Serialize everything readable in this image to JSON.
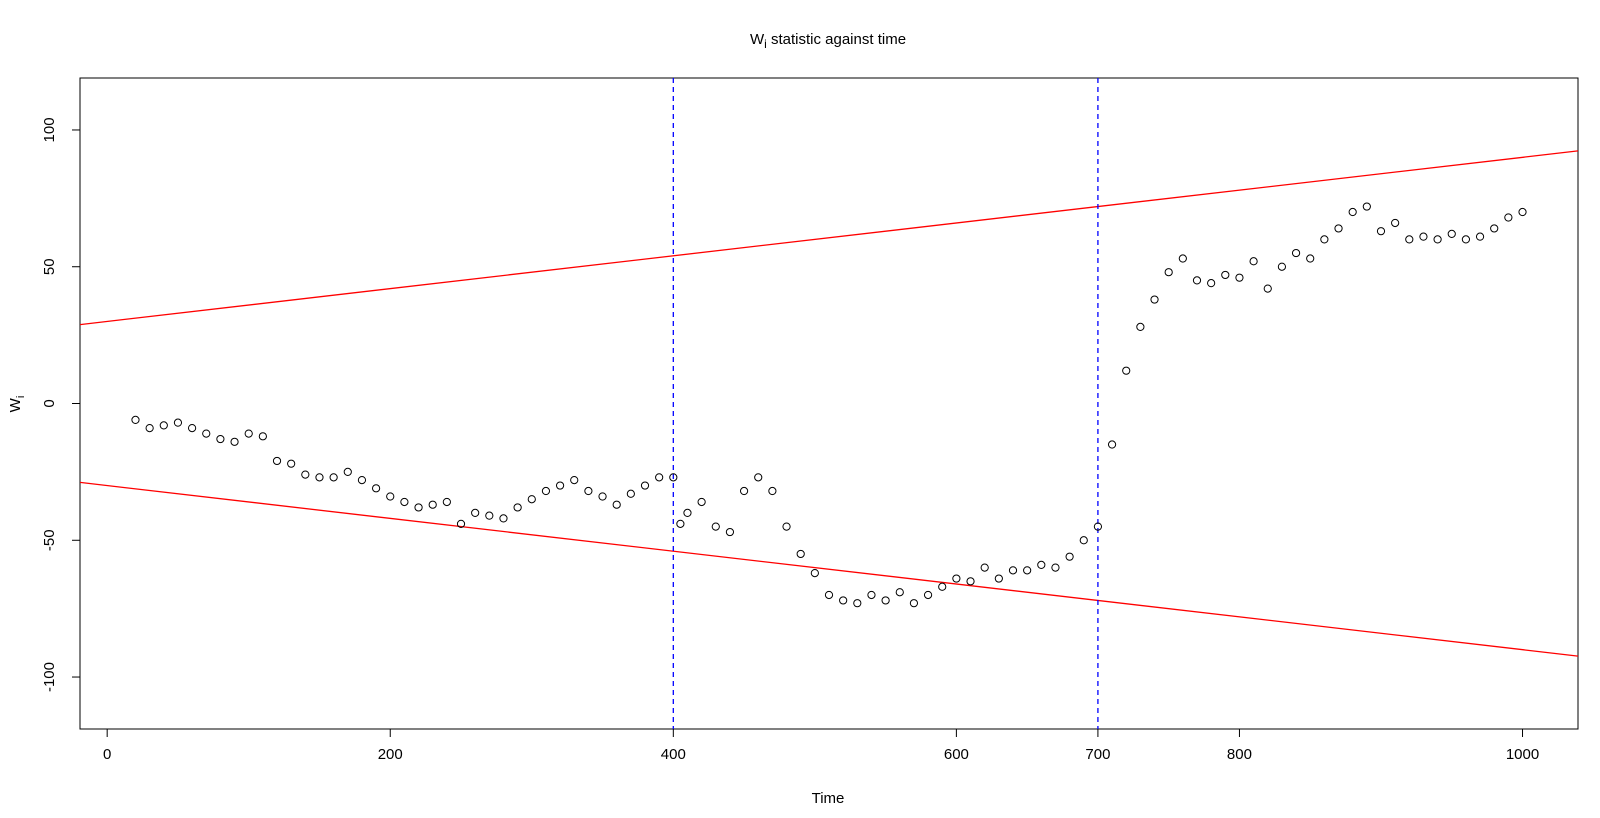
{
  "chart_data": {
    "type": "scatter",
    "title": {
      "base": "W",
      "subscript": "i",
      "rest": " statistic against time"
    },
    "xlabel": "Time",
    "ylabel": {
      "base": "W",
      "subscript": "i"
    },
    "x": [
      20,
      30,
      40,
      50,
      60,
      70,
      80,
      90,
      100,
      110,
      120,
      130,
      140,
      150,
      160,
      170,
      180,
      190,
      200,
      210,
      220,
      230,
      240,
      250,
      260,
      270,
      280,
      290,
      300,
      310,
      320,
      330,
      340,
      350,
      360,
      370,
      380,
      390,
      400,
      405,
      410,
      420,
      430,
      440,
      450,
      460,
      470,
      480,
      490,
      500,
      510,
      520,
      530,
      540,
      550,
      560,
      570,
      580,
      590,
      600,
      610,
      620,
      630,
      640,
      650,
      660,
      670,
      680,
      690,
      700,
      710,
      720,
      730,
      740,
      750,
      760,
      770,
      780,
      790,
      800,
      810,
      820,
      830,
      840,
      850,
      860,
      870,
      880,
      890,
      900,
      910,
      920,
      930,
      940,
      950,
      960,
      970,
      980,
      990,
      1000
    ],
    "series": [
      {
        "color": "#000000",
        "values": [
          -6,
          -9,
          -8,
          -7,
          -9,
          -11,
          -13,
          -14,
          -11,
          -12,
          -21,
          -22,
          -26,
          -27,
          -27,
          -25,
          -28,
          -31,
          -34,
          -36,
          -38,
          -37,
          -36,
          -44,
          -40,
          -41,
          -42,
          -38,
          -35,
          -32,
          -30,
          -28,
          -32,
          -34,
          -37,
          -33,
          -30,
          -27,
          -27,
          -44,
          -40,
          -36,
          -45,
          -47,
          -32,
          -27,
          -32,
          -45,
          -55,
          -62,
          -70,
          -72,
          -73,
          -70,
          -72,
          -69,
          -73,
          -70,
          -67,
          -64,
          -65,
          -60,
          -64,
          -61,
          -61,
          -59,
          -60,
          -56,
          -50,
          -45,
          -15,
          12,
          28,
          38,
          48,
          53,
          45,
          44,
          47,
          46,
          52,
          42,
          50,
          55,
          53,
          60,
          64,
          70,
          72,
          63,
          66,
          60,
          61,
          60,
          62,
          60,
          61,
          64,
          68,
          70
        ]
      }
    ],
    "lines": [
      {
        "intercept": 30,
        "slope": 0.06,
        "color": "#ff0000"
      },
      {
        "intercept": -30,
        "slope": -0.06,
        "color": "#ff0000"
      }
    ],
    "vlines": [
      400,
      700
    ],
    "vline_color": "#0000ff",
    "xlim": [
      -19.2,
      1039.2
    ],
    "ylim": [
      -119,
      119
    ],
    "xticks": [
      0,
      200,
      400,
      600,
      700,
      800,
      1000
    ],
    "yticks": [
      -100,
      -50,
      0,
      50,
      100
    ]
  }
}
